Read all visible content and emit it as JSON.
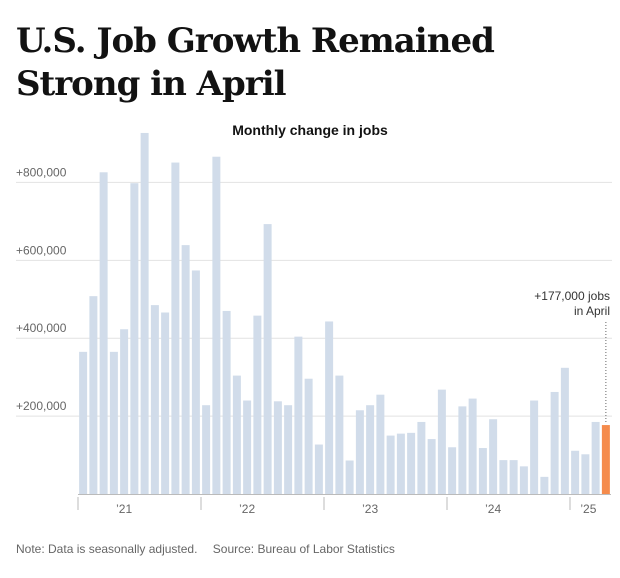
{
  "headline": "U.S. Job Growth Remained Strong in April",
  "chart_data": {
    "type": "bar",
    "title": "Monthly change in jobs",
    "xlabel": "",
    "ylabel": "",
    "ylim": [
      0,
      950000
    ],
    "y_ticks": [
      200000,
      400000,
      600000,
      800000
    ],
    "y_tick_labels": [
      "+200,000",
      "+400,000",
      "+600,000",
      "+800,000"
    ],
    "grid": true,
    "x_tick_labels": [
      {
        "label": "’21",
        "index": 4
      },
      {
        "label": "’22",
        "index": 16
      },
      {
        "label": "’23",
        "index": 28
      },
      {
        "label": "’24",
        "index": 40
      },
      {
        "label": "’25",
        "index": 49
      }
    ],
    "year_boundaries": [
      0,
      12,
      24,
      36,
      48
    ],
    "bar_color": "#d1dcea",
    "highlight_color": "#f58b4c",
    "highlight_index": 51,
    "values": [
      365000,
      508000,
      826000,
      365000,
      423000,
      798000,
      927000,
      485000,
      466000,
      851000,
      639000,
      574000,
      228000,
      866000,
      470000,
      304000,
      240000,
      458000,
      693000,
      238000,
      228000,
      404000,
      296000,
      127000,
      443000,
      304000,
      86000,
      215000,
      228000,
      255000,
      150000,
      155000,
      157000,
      185000,
      141000,
      268000,
      120000,
      225000,
      245000,
      118000,
      192000,
      87000,
      87000,
      71000,
      240000,
      44000,
      262000,
      324000,
      111000,
      102000,
      185000,
      177000
    ],
    "annotation": [
      "+177,000 jobs",
      "in April"
    ]
  },
  "footer": {
    "note": "Note: Data is seasonally adjusted.",
    "source": "Source: Bureau of Labor Statistics"
  }
}
